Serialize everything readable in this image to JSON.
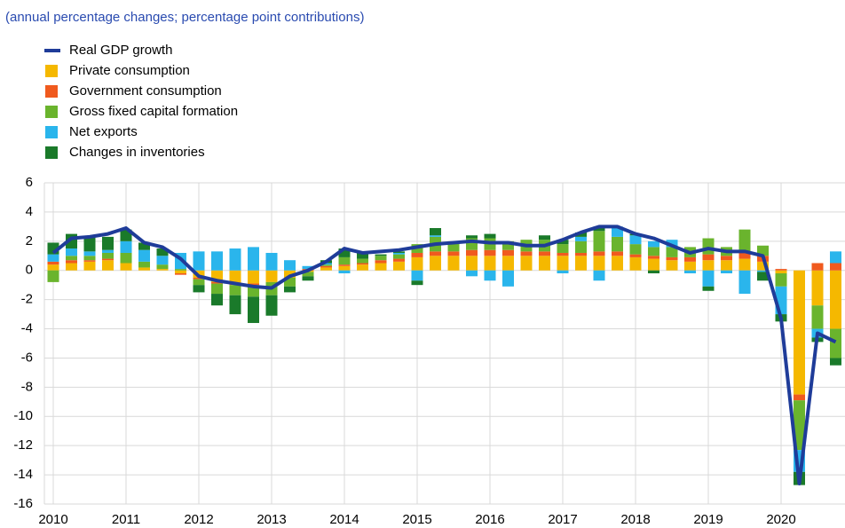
{
  "chart_data": {
    "type": "bar",
    "subtitle": "(annual percentage changes; percentage point contributions)",
    "categories": [
      "2010",
      null,
      null,
      null,
      "2011",
      null,
      null,
      null,
      "2012",
      null,
      null,
      null,
      "2013",
      null,
      null,
      null,
      "2014",
      null,
      null,
      null,
      "2015",
      null,
      null,
      null,
      "2016",
      null,
      null,
      null,
      "2017",
      null,
      null,
      null,
      "2018",
      null,
      null,
      null,
      "2019",
      null,
      null,
      null,
      "2020",
      null,
      null,
      null
    ],
    "stacked": true,
    "series": [
      {
        "name": "Real GDP growth",
        "type": "line",
        "color": "#1f3c99",
        "values": [
          1.2,
          2.2,
          2.3,
          2.5,
          2.9,
          1.9,
          1.6,
          0.8,
          -0.4,
          -0.7,
          -0.9,
          -1.1,
          -1.2,
          -0.4,
          0.0,
          0.6,
          1.5,
          1.2,
          1.3,
          1.4,
          1.6,
          1.8,
          1.9,
          2.0,
          1.9,
          1.9,
          1.7,
          1.7,
          2.1,
          2.6,
          3.0,
          3.0,
          2.5,
          2.2,
          1.7,
          1.2,
          1.5,
          1.3,
          1.3,
          1.0,
          -3.3,
          -14.6,
          -4.3,
          -4.9
        ]
      },
      {
        "name": "Private consumption",
        "color": "#f5b800",
        "values": [
          0.4,
          0.5,
          0.6,
          0.7,
          0.5,
          0.2,
          0.1,
          -0.2,
          -0.5,
          -0.8,
          -0.9,
          -0.9,
          -0.8,
          -0.5,
          -0.1,
          0.2,
          0.3,
          0.4,
          0.5,
          0.6,
          0.9,
          1.0,
          1.0,
          1.0,
          1.0,
          1.0,
          1.0,
          1.0,
          1.0,
          1.0,
          1.0,
          1.0,
          0.9,
          0.8,
          0.7,
          0.6,
          0.7,
          0.7,
          0.8,
          0.6,
          -0.2,
          -8.5,
          -2.4,
          -4.0
        ]
      },
      {
        "name": "Government consumption",
        "color": "#f05a1e",
        "values": [
          0.2,
          0.2,
          0.1,
          0.1,
          0.0,
          0.0,
          0.0,
          -0.1,
          -0.1,
          -0.1,
          -0.1,
          -0.1,
          0.0,
          0.0,
          0.1,
          0.1,
          0.1,
          0.1,
          0.2,
          0.2,
          0.3,
          0.3,
          0.3,
          0.4,
          0.4,
          0.4,
          0.3,
          0.3,
          0.2,
          0.2,
          0.3,
          0.3,
          0.2,
          0.2,
          0.2,
          0.3,
          0.4,
          0.3,
          0.4,
          0.4,
          0.1,
          -0.4,
          0.5,
          0.5
        ]
      },
      {
        "name": "Gross fixed capital formation",
        "color": "#6ab42d",
        "values": [
          -0.8,
          0.3,
          0.3,
          0.4,
          0.7,
          0.4,
          0.3,
          0.1,
          -0.4,
          -0.7,
          -0.7,
          -0.8,
          -0.9,
          -0.6,
          -0.3,
          0.1,
          0.5,
          0.3,
          0.3,
          0.3,
          0.6,
          1.0,
          0.6,
          0.8,
          0.8,
          0.6,
          0.8,
          0.8,
          0.6,
          0.8,
          1.4,
          1.0,
          0.7,
          0.6,
          0.7,
          0.7,
          1.1,
          0.6,
          1.6,
          0.7,
          -0.9,
          -3.4,
          -1.6,
          -2.0
        ]
      },
      {
        "name": "Net exports",
        "color": "#2ab5ec",
        "values": [
          0.5,
          0.5,
          0.3,
          0.2,
          0.8,
          0.8,
          0.6,
          1.1,
          1.3,
          1.3,
          1.5,
          1.6,
          1.2,
          0.7,
          0.2,
          0.1,
          -0.2,
          0.0,
          0.0,
          0.1,
          -0.7,
          0.1,
          0.0,
          -0.4,
          -0.7,
          -1.1,
          0.0,
          0.0,
          -0.2,
          0.3,
          -0.7,
          0.7,
          0.6,
          0.4,
          0.5,
          -0.2,
          -1.1,
          -0.2,
          -1.6,
          -0.1,
          -1.9,
          -1.5,
          -0.6,
          0.8
        ]
      },
      {
        "name": "Changes in inventories",
        "color": "#1a7a2a",
        "values": [
          0.8,
          1.0,
          1.0,
          0.9,
          0.8,
          0.5,
          0.5,
          0.0,
          -0.5,
          -0.8,
          -1.3,
          -1.8,
          -1.4,
          -0.4,
          -0.3,
          0.2,
          0.6,
          0.5,
          0.1,
          0.1,
          -0.3,
          0.5,
          0.0,
          0.2,
          0.3,
          0.0,
          0.0,
          0.3,
          0.3,
          0.3,
          0.3,
          0.0,
          0.1,
          -0.2,
          0.0,
          0.0,
          -0.3,
          0.0,
          0.0,
          -0.6,
          -0.5,
          -0.9,
          -0.3,
          -0.5
        ]
      }
    ],
    "ylim": [
      -16,
      6
    ],
    "yticks": [
      -16,
      -14,
      -12,
      -10,
      -8,
      -6,
      -4,
      -2,
      0,
      2,
      4,
      6
    ],
    "grid": true
  }
}
